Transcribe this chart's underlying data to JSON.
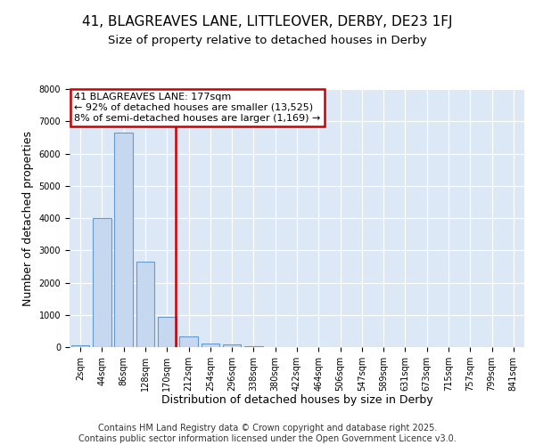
{
  "title1": "41, BLAGREAVES LANE, LITTLEOVER, DERBY, DE23 1FJ",
  "title2": "Size of property relative to detached houses in Derby",
  "xlabel": "Distribution of detached houses by size in Derby",
  "ylabel": "Number of detached properties",
  "categories": [
    "2sqm",
    "44sqm",
    "86sqm",
    "128sqm",
    "170sqm",
    "212sqm",
    "254sqm",
    "296sqm",
    "338sqm",
    "380sqm",
    "422sqm",
    "464sqm",
    "506sqm",
    "547sqm",
    "589sqm",
    "631sqm",
    "673sqm",
    "715sqm",
    "757sqm",
    "799sqm",
    "841sqm"
  ],
  "bar_heights": [
    55,
    4000,
    6650,
    2650,
    950,
    330,
    120,
    70,
    40,
    10,
    5,
    0,
    0,
    0,
    0,
    0,
    0,
    0,
    0,
    0,
    0
  ],
  "bar_color": "#c5d8f0",
  "bar_edge_color": "#6699cc",
  "vline_x": 4.4,
  "vline_color": "#cc0000",
  "annotation_text": "41 BLAGREAVES LANE: 177sqm\n← 92% of detached houses are smaller (13,525)\n8% of semi-detached houses are larger (1,169) →",
  "annotation_box_color": "#cc0000",
  "ylim": [
    0,
    8000
  ],
  "yticks": [
    0,
    1000,
    2000,
    3000,
    4000,
    5000,
    6000,
    7000,
    8000
  ],
  "bg_color": "#ffffff",
  "plot_bg": "#dce8f5",
  "footer": "Contains HM Land Registry data © Crown copyright and database right 2025.\nContains public sector information licensed under the Open Government Licence v3.0.",
  "title_fontsize": 11,
  "subtitle_fontsize": 9.5,
  "axis_label_fontsize": 9,
  "tick_fontsize": 7,
  "footer_fontsize": 7
}
